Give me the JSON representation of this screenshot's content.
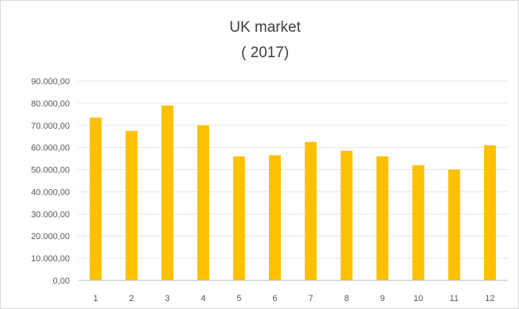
{
  "chart_data": {
    "type": "bar",
    "title_line1": "UK market",
    "title_line2": "( 2017)",
    "xlabel": "",
    "ylabel": "",
    "categories": [
      "1",
      "2",
      "3",
      "4",
      "5",
      "6",
      "7",
      "8",
      "9",
      "10",
      "11",
      "12"
    ],
    "values": [
      73500,
      67500,
      79000,
      70000,
      56000,
      56500,
      62500,
      58500,
      56000,
      52000,
      50000,
      61000
    ],
    "ylim": [
      0,
      90000
    ],
    "yticks": [
      0,
      10000,
      20000,
      30000,
      40000,
      50000,
      60000,
      70000,
      80000,
      90000
    ],
    "ytick_labels": [
      "0,00",
      "10.000,00",
      "20.000,00",
      "30.000,00",
      "40.000,00",
      "50.000,00",
      "60.000,00",
      "70.000,00",
      "80.000,00",
      "90.000,00"
    ],
    "grid": true,
    "legend": "none",
    "bar_color": "#FFC000",
    "grid_color": "#E6E6E6",
    "axis_color": "#BFBFBF"
  }
}
